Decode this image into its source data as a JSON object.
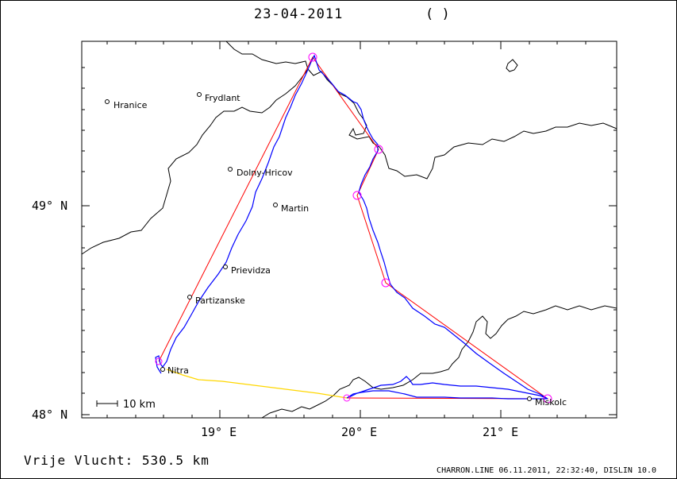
{
  "header": {
    "date": "23-04-2011",
    "subtitle": "( )"
  },
  "axes": {
    "lat_labels": [
      "49° N",
      "48° N"
    ],
    "lon_labels": [
      "19° E",
      "20° E",
      "21° E"
    ]
  },
  "scale_bar": {
    "label": "10 km"
  },
  "towns": [
    {
      "name": "Hranice"
    },
    {
      "name": "Frydlant"
    },
    {
      "name": "Dolny-Hricov"
    },
    {
      "name": "Martin"
    },
    {
      "name": "Prievidza"
    },
    {
      "name": "Partizanske"
    },
    {
      "name": "Nitra"
    },
    {
      "name": "Miskolc"
    }
  ],
  "footer": {
    "flight_label": "Vrije Vlucht:  530.5 km",
    "program_info": "CHARRON.LINE 06.11.2011, 22:32:40, DISLIN 10.0"
  },
  "colors": {
    "track": "#0000ff",
    "task_line": "#ff0000",
    "closing_leg": "#ffd700",
    "turnpoint": "#ff00ff",
    "border": "#000000"
  }
}
